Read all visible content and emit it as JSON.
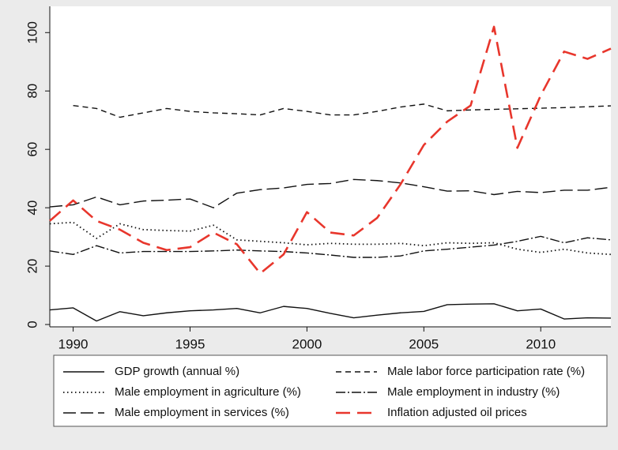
{
  "chart_data": {
    "type": "line",
    "x": [
      1989,
      1990,
      1991,
      1992,
      1993,
      1994,
      1995,
      1996,
      1997,
      1998,
      1999,
      2000,
      2001,
      2002,
      2003,
      2004,
      2005,
      2006,
      2007,
      2008,
      2009,
      2010,
      2011,
      2012,
      2013
    ],
    "xlim": [
      1989,
      2013
    ],
    "xticks": [
      1990,
      1995,
      2000,
      2005,
      2010
    ],
    "ylim": [
      -0.8,
      109
    ],
    "yticks": [
      0,
      20,
      40,
      60,
      80,
      100
    ],
    "grid": false,
    "series": [
      {
        "name": "GDP growth (annual %)",
        "color": "#111111",
        "values": [
          5,
          5.7,
          1.2,
          4.4,
          3,
          4,
          4.7,
          5,
          5.5,
          4,
          6.2,
          5.5,
          3.8,
          2.3,
          3.2,
          4,
          4.5,
          6.8,
          7,
          7.1,
          4.7,
          5.3,
          1.9,
          2.3,
          2.2
        ]
      },
      {
        "name": "Male labor force participation rate (%)",
        "color": "#111111",
        "values": [
          null,
          75,
          74,
          71,
          72.5,
          74,
          73,
          72.5,
          72.2,
          71.8,
          74,
          73,
          71.8,
          71.8,
          73,
          74.5,
          75.5,
          73.2,
          73.5,
          73.7,
          73.9,
          74.1,
          74.3,
          74.6,
          74.9
        ]
      },
      {
        "name": "Male employment in agriculture (%)",
        "color": "#111111",
        "values": [
          34.5,
          35,
          29.5,
          34.5,
          32.5,
          32.2,
          32,
          34,
          29,
          28.5,
          28,
          27.3,
          27.8,
          27.5,
          27.5,
          27.8,
          27,
          28,
          27.8,
          28,
          25.8,
          24.7,
          25.8,
          24.5,
          24
        ]
      },
      {
        "name": "Male employment in industry (%)",
        "color": "#111111",
        "values": [
          25.2,
          24,
          27,
          24.5,
          25,
          25,
          25,
          25.2,
          25.5,
          25.2,
          25,
          24.5,
          23.8,
          23,
          23,
          23.5,
          25.2,
          25.8,
          26.5,
          27.2,
          28.5,
          30.2,
          28,
          29.7,
          29
        ]
      },
      {
        "name": "Male employment in services (%)",
        "color": "#111111",
        "values": [
          40.3,
          41,
          43.7,
          41,
          42.3,
          42.6,
          43,
          40,
          45,
          46.2,
          46.8,
          48,
          48.3,
          49.7,
          49.3,
          48.5,
          47.2,
          45.7,
          45.8,
          44.5,
          45.6,
          45.2,
          46,
          46,
          47
        ]
      },
      {
        "name": "Inflation adjusted oil prices",
        "color": "#e8362c",
        "values": [
          35.5,
          42.5,
          35.5,
          32.5,
          28,
          25.5,
          26.5,
          31.5,
          27.5,
          17.5,
          24,
          38.5,
          31.5,
          30.5,
          36.5,
          48,
          61.5,
          69.5,
          75,
          102,
          60.5,
          78.5,
          93.5,
          91,
          94.5
        ]
      }
    ]
  }
}
